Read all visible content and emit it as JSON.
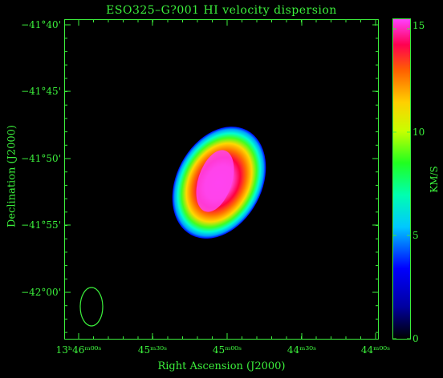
{
  "title": "ESO325–G?001  HI velocity dispersion",
  "x_label": "Right Ascension (J2000)",
  "y_label": "Declination (J2000)",
  "colorbar": {
    "label": "KM/S",
    "ticks": [
      "0",
      "5",
      "10",
      "15"
    ],
    "range": [
      0,
      15.5
    ]
  },
  "axes": {
    "x_ticks": [
      "13ʰ46ᵐ⁰⁰ˢ",
      "45ᵐ³⁰ˢ",
      "45ᵐ⁰⁰ˢ",
      "44ᵐ³⁰ˢ",
      "44ᵐ⁰⁰ˢ"
    ],
    "y_ticks": [
      "−41°40'",
      "−41°45'",
      "−41°50'",
      "−41°55'",
      "−42°00'"
    ]
  },
  "colors": {
    "axis": "#3cf03c",
    "background": "#000000"
  }
}
